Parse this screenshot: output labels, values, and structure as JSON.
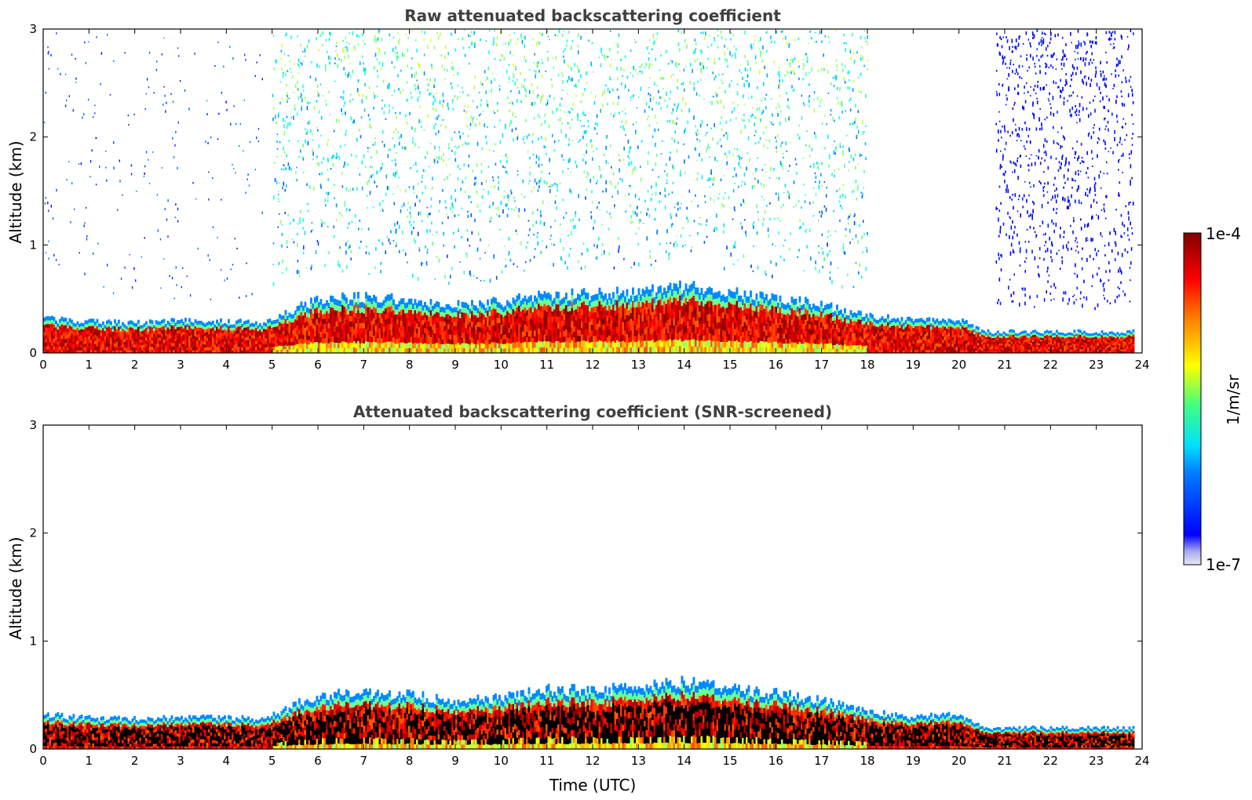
{
  "chart_data": [
    {
      "type": "heatmap",
      "title": "Raw attenuated backscattering coefficient",
      "xlabel": "",
      "ylabel": "Altitude (km)",
      "xlim": [
        0,
        24
      ],
      "ylim": [
        0,
        3
      ],
      "x_ticks": [
        "0",
        "1",
        "2",
        "3",
        "4",
        "5",
        "6",
        "7",
        "8",
        "9",
        "10",
        "11",
        "12",
        "13",
        "14",
        "15",
        "16",
        "17",
        "18",
        "19",
        "20",
        "21",
        "22",
        "23",
        "24"
      ],
      "y_ticks": [
        "0",
        "1",
        "2",
        "3"
      ],
      "colormap": "jet",
      "layer_top_km": {
        "hours": [
          0,
          1,
          2,
          3,
          4,
          4.8,
          5.5,
          6,
          7,
          8,
          9,
          10,
          11,
          12,
          13,
          14,
          15,
          16,
          17,
          18,
          19,
          20,
          20.5,
          21,
          22,
          23,
          23.8
        ],
        "values": [
          0.32,
          0.29,
          0.28,
          0.3,
          0.3,
          0.27,
          0.42,
          0.5,
          0.52,
          0.5,
          0.45,
          0.48,
          0.55,
          0.55,
          0.57,
          0.62,
          0.56,
          0.52,
          0.45,
          0.35,
          0.3,
          0.32,
          0.2,
          0.2,
          0.2,
          0.2,
          0.2
        ]
      },
      "noise_region_hours": [
        [
          5,
          18
        ],
        [
          20.8,
          23.8
        ]
      ]
    },
    {
      "type": "heatmap",
      "title": "Attenuated backscattering coefficient (SNR-screened)",
      "xlabel": "Time (UTC)",
      "ylabel": "Altitude (km)",
      "xlim": [
        0,
        24
      ],
      "ylim": [
        0,
        3
      ],
      "x_ticks": [
        "0",
        "1",
        "2",
        "3",
        "4",
        "5",
        "6",
        "7",
        "8",
        "9",
        "10",
        "11",
        "12",
        "13",
        "14",
        "15",
        "16",
        "17",
        "18",
        "19",
        "20",
        "21",
        "22",
        "23",
        "24"
      ],
      "y_ticks": [
        "0",
        "1",
        "2",
        "3"
      ],
      "colormap": "jet",
      "layer_top_km": {
        "hours": [
          0,
          1,
          2,
          3,
          4,
          4.8,
          5.5,
          6,
          7,
          8,
          9,
          10,
          11,
          12,
          13,
          14,
          15,
          16,
          17,
          18,
          19,
          20,
          20.5,
          21,
          22,
          23,
          23.8
        ],
        "values": [
          0.32,
          0.29,
          0.28,
          0.3,
          0.3,
          0.27,
          0.42,
          0.5,
          0.52,
          0.5,
          0.45,
          0.48,
          0.55,
          0.55,
          0.57,
          0.62,
          0.56,
          0.52,
          0.45,
          0.35,
          0.3,
          0.32,
          0.2,
          0.2,
          0.2,
          0.2,
          0.2
        ]
      }
    }
  ],
  "colorbar": {
    "label": "1/m/sr",
    "max_label": "1e-4",
    "min_label": "1e-7",
    "scale": "log",
    "range": [
      1e-07,
      0.0001
    ]
  }
}
